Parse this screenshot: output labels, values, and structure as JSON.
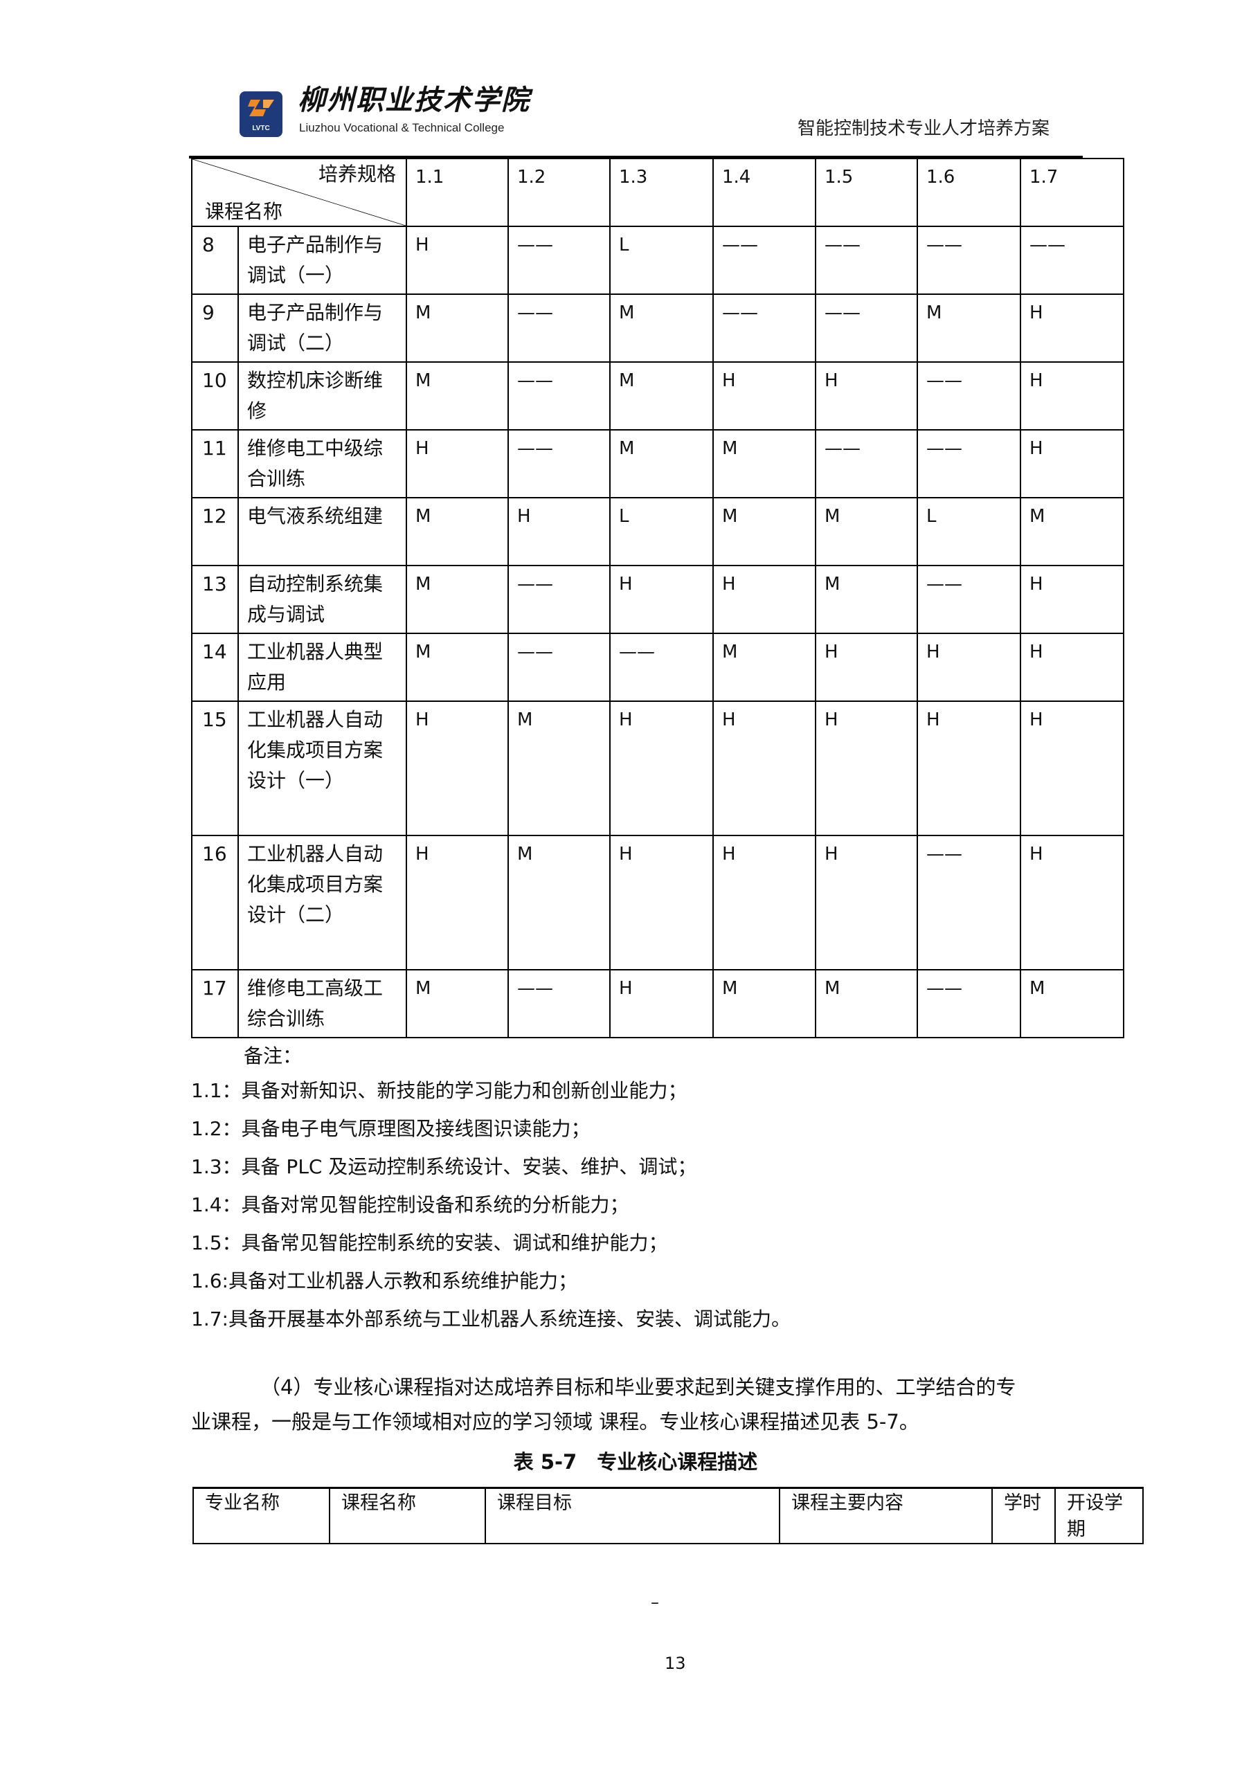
{
  "header": {
    "logo_abbr": "LVTC",
    "logo_cn": "柳州职业技术学院",
    "logo_en": "Liuzhou Vocational & Technical College",
    "doc_title": "智能控制技术专业人才培养方案"
  },
  "matrix_table": {
    "corner_top": "培养规格",
    "corner_bottom": "课程名称",
    "columns": [
      "1.1",
      "1.2",
      "1.3",
      "1.4",
      "1.5",
      "1.6",
      "1.7"
    ],
    "rows": [
      {
        "no": "8",
        "name": "电子产品制作与调试（一）",
        "values": [
          "H",
          "——",
          "L",
          "——",
          "——",
          "——",
          "——"
        ]
      },
      {
        "no": "9",
        "name": "电子产品制作与调试（二）",
        "values": [
          "M",
          "——",
          "M",
          "——",
          "——",
          "M",
          "H"
        ]
      },
      {
        "no": "10",
        "name": "数控机床诊断维修",
        "values": [
          "M",
          "——",
          "M",
          "H",
          "H",
          "——",
          "H"
        ]
      },
      {
        "no": "11",
        "name": "维修电工中级综合训练",
        "values": [
          "H",
          "——",
          "M",
          "M",
          "——",
          "——",
          "H"
        ]
      },
      {
        "no": "12",
        "name": "电气液系统组建",
        "values": [
          "M",
          "H",
          "L",
          "M",
          "M",
          "L",
          "M"
        ]
      },
      {
        "no": "13",
        "name": "自动控制系统集成与调试",
        "values": [
          "M",
          "——",
          "H",
          "H",
          "M",
          "——",
          "H"
        ]
      },
      {
        "no": "14",
        "name": "工业机器人典型应用",
        "values": [
          "M",
          "——",
          "——",
          "M",
          "H",
          "H",
          "H"
        ]
      },
      {
        "no": "15",
        "name": "工业机器人自动化集成项目方案设计（一）",
        "values": [
          "H",
          "M",
          "H",
          "H",
          "H",
          "H",
          "H"
        ]
      },
      {
        "no": "16",
        "name": "工业机器人自动化集成项目方案设计（二）",
        "values": [
          "H",
          "M",
          "H",
          "H",
          "H",
          "——",
          "H"
        ]
      },
      {
        "no": "17",
        "name": "维修电工高级工综合训练",
        "values": [
          "M",
          "——",
          "H",
          "M",
          "M",
          "——",
          "M"
        ]
      }
    ]
  },
  "notes": {
    "label": "备注：",
    "items": [
      "1.1：具备对新知识、新技能的学习能力和创新创业能力；",
      "1.2：具备电子电气原理图及接线图识读能力；",
      "1.3：具备 PLC 及运动控制系统设计、安装、维护、调试；",
      "1.4：具备对常见智能控制设备和系统的分析能力；",
      "1.5：具备常见智能控制系统的安装、调试和维护能力；",
      "1.6:具备对工业机器人示教和系统维护能力；",
      "1.7:具备开展基本外部系统与工业机器人系统连接、安装、调试能力。"
    ]
  },
  "paragraph": {
    "line1": "（4）专业核心课程指对达成培养目标和毕业要求起到关键支撑作用的、工学结合的专",
    "line2": "业课程，一般是与工作领域相对应的学习领域 课程。专业核心课程描述见表 5-7。"
  },
  "core_table": {
    "caption": "表 5-7　专业核心课程描述",
    "headers": [
      "专业名称",
      "课程名称",
      "课程目标",
      "课程主要内容",
      "学时",
      "开设学期"
    ]
  },
  "footer": {
    "dash": "–",
    "page_number": "13"
  }
}
